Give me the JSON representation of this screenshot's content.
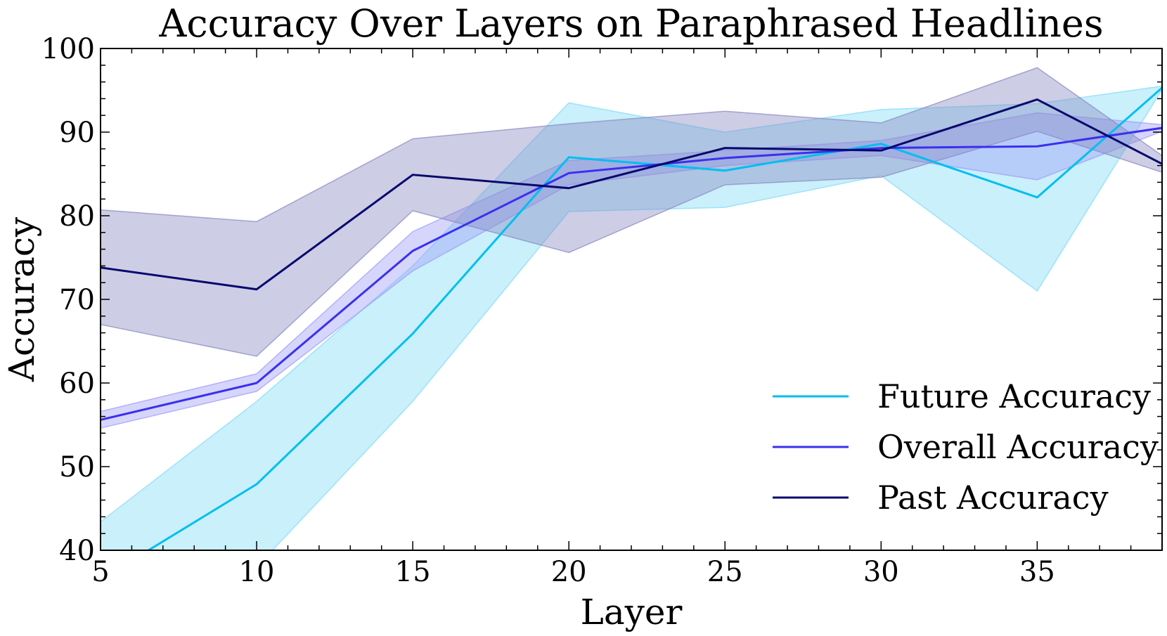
{
  "chart_data": {
    "type": "line",
    "title": "Accuracy Over Layers on Paraphrased Headlines",
    "xlabel": "Layer",
    "ylabel": "Accuracy",
    "xlim": [
      5,
      39
    ],
    "ylim": [
      40,
      100
    ],
    "xticks": [
      5,
      10,
      15,
      20,
      25,
      30,
      35
    ],
    "yticks": [
      40,
      50,
      60,
      70,
      80,
      90,
      100
    ],
    "grid": false,
    "legend_position": "lower-right",
    "x": [
      5,
      10,
      15,
      20,
      25,
      30,
      35,
      39
    ],
    "series": [
      {
        "name": "Future Accuracy",
        "color": "#00bfef",
        "band_color": "#7fdcf5",
        "values": [
          36.5,
          47.9,
          65.9,
          87.0,
          85.4,
          88.6,
          82.2,
          95.3
        ],
        "lower": [
          29.5,
          38.0,
          57.8,
          80.5,
          81.0,
          84.8,
          71.0,
          95.1
        ],
        "upper": [
          43.4,
          57.8,
          74.0,
          93.5,
          90.0,
          92.7,
          93.4,
          95.5
        ]
      },
      {
        "name": "Overall Accuracy",
        "color": "#3a30ee",
        "band_color": "#9e9af6",
        "values": [
          55.6,
          60.0,
          75.8,
          85.1,
          86.9,
          88.1,
          88.3,
          90.5
        ],
        "lower": [
          54.6,
          59.0,
          73.4,
          83.7,
          86.0,
          87.2,
          84.3,
          90.1
        ],
        "upper": [
          56.6,
          61.1,
          78.1,
          86.6,
          87.8,
          89.0,
          92.3,
          90.9
        ]
      },
      {
        "name": "Past Accuracy",
        "color": "#08086e",
        "band_color": "#8888c2",
        "values": [
          73.8,
          71.2,
          84.9,
          83.3,
          88.1,
          87.8,
          93.9,
          86.2
        ],
        "lower": [
          67.0,
          63.2,
          80.6,
          75.6,
          83.7,
          84.6,
          90.1,
          85.2
        ],
        "upper": [
          80.7,
          79.3,
          89.2,
          91.0,
          92.5,
          91.1,
          97.7,
          87.2
        ]
      }
    ]
  }
}
